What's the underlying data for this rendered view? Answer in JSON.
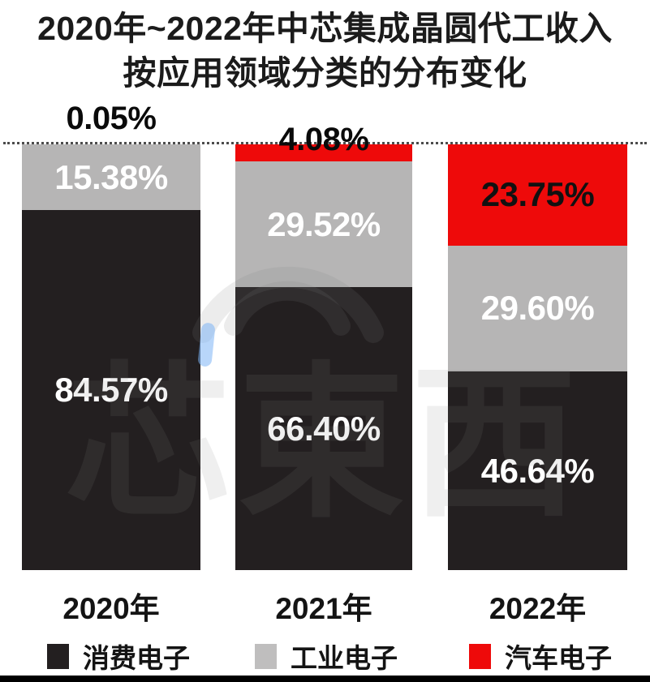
{
  "title": {
    "line1": "2020年~2022年中芯集成晶圆代工收入",
    "line2": "按应用领域分类的分布变化"
  },
  "chart_data": {
    "type": "bar",
    "subtype": "stacked-percentage-column",
    "categories": [
      "2020年",
      "2021年",
      "2022年"
    ],
    "series": [
      {
        "name": "汽车电子",
        "color": "#ee0a0a",
        "values": [
          0.05,
          4.08,
          23.75
        ],
        "labels": [
          "0.05%",
          "4.08%",
          "23.75%"
        ],
        "label_color": "#111111"
      },
      {
        "name": "工业电子",
        "color": "#b6b5b5",
        "values": [
          15.38,
          29.52,
          29.6
        ],
        "labels": [
          "15.38%",
          "29.52%",
          "29.60%"
        ],
        "label_color": "#ffffff"
      },
      {
        "name": "消费电子",
        "color": "#231f20",
        "values": [
          84.57,
          66.4,
          46.64
        ],
        "labels": [
          "84.57%",
          "66.40%",
          "46.64%"
        ],
        "label_color": "#ffffff"
      }
    ],
    "ylim": [
      0,
      100
    ],
    "gridline_value": 100,
    "gridline_style": "dotted",
    "legend_position": "bottom",
    "axes_shown": false
  },
  "legend": [
    {
      "label": "消费电子",
      "color": "#231f20"
    },
    {
      "label": "工业电子",
      "color": "#bfbebe"
    },
    {
      "label": "汽车电子",
      "color": "#ee0a0a"
    }
  ],
  "watermark": {
    "text": "芯東西"
  }
}
